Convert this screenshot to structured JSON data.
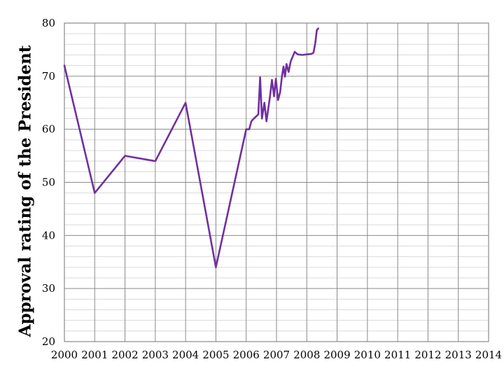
{
  "chart_data": {
    "type": "line",
    "title": "",
    "xlabel": "",
    "ylabel": "Approval rating of the President",
    "xlim": [
      2000,
      2014
    ],
    "ylim": [
      20,
      80
    ],
    "x_tick_step": 1,
    "y_tick_step": 10,
    "y_minor_step": 2,
    "grid": "major horizontal + minor horizontal + vertical per year, boxed border",
    "legend": "none",
    "x_ticks": [
      2000,
      2001,
      2002,
      2003,
      2004,
      2005,
      2006,
      2007,
      2008,
      2009,
      2010,
      2011,
      2012,
      2013,
      2014
    ],
    "y_ticks": [
      20,
      30,
      40,
      50,
      60,
      70,
      80
    ],
    "colors": {
      "line": "#7030A0",
      "major_grid": "#8a8a8a",
      "minor_grid": "#d9d9d9",
      "border": "#8a8a8a",
      "tick_text": "#000000",
      "axis_title_text": "#000000",
      "background": "#ffffff"
    },
    "series": [
      {
        "points": [
          [
            2000,
            72
          ],
          [
            2001,
            48
          ],
          [
            2002,
            55
          ],
          [
            2003,
            54
          ],
          [
            2004,
            65
          ],
          [
            2005,
            34
          ],
          [
            2006.0,
            60
          ],
          [
            2006.1,
            60
          ],
          [
            2006.17,
            61.5
          ],
          [
            2006.25,
            62
          ],
          [
            2006.4,
            62.8
          ],
          [
            2006.46,
            69.8
          ],
          [
            2006.52,
            62
          ],
          [
            2006.6,
            65
          ],
          [
            2006.67,
            61.5
          ],
          [
            2006.78,
            66
          ],
          [
            2006.85,
            69.3
          ],
          [
            2006.92,
            66.2
          ],
          [
            2006.98,
            69.5
          ],
          [
            2007.05,
            65.5
          ],
          [
            2007.12,
            67
          ],
          [
            2007.18,
            70
          ],
          [
            2007.23,
            71.8
          ],
          [
            2007.28,
            69.9
          ],
          [
            2007.33,
            72.3
          ],
          [
            2007.4,
            70.8
          ],
          [
            2007.47,
            72.8
          ],
          [
            2007.6,
            74.6
          ],
          [
            2007.7,
            74.1
          ],
          [
            2007.85,
            74.0
          ],
          [
            2008.0,
            74.1
          ],
          [
            2008.15,
            74.2
          ],
          [
            2008.22,
            74.4
          ],
          [
            2008.28,
            76.2
          ],
          [
            2008.33,
            78.7
          ],
          [
            2008.38,
            79
          ]
        ]
      }
    ]
  }
}
